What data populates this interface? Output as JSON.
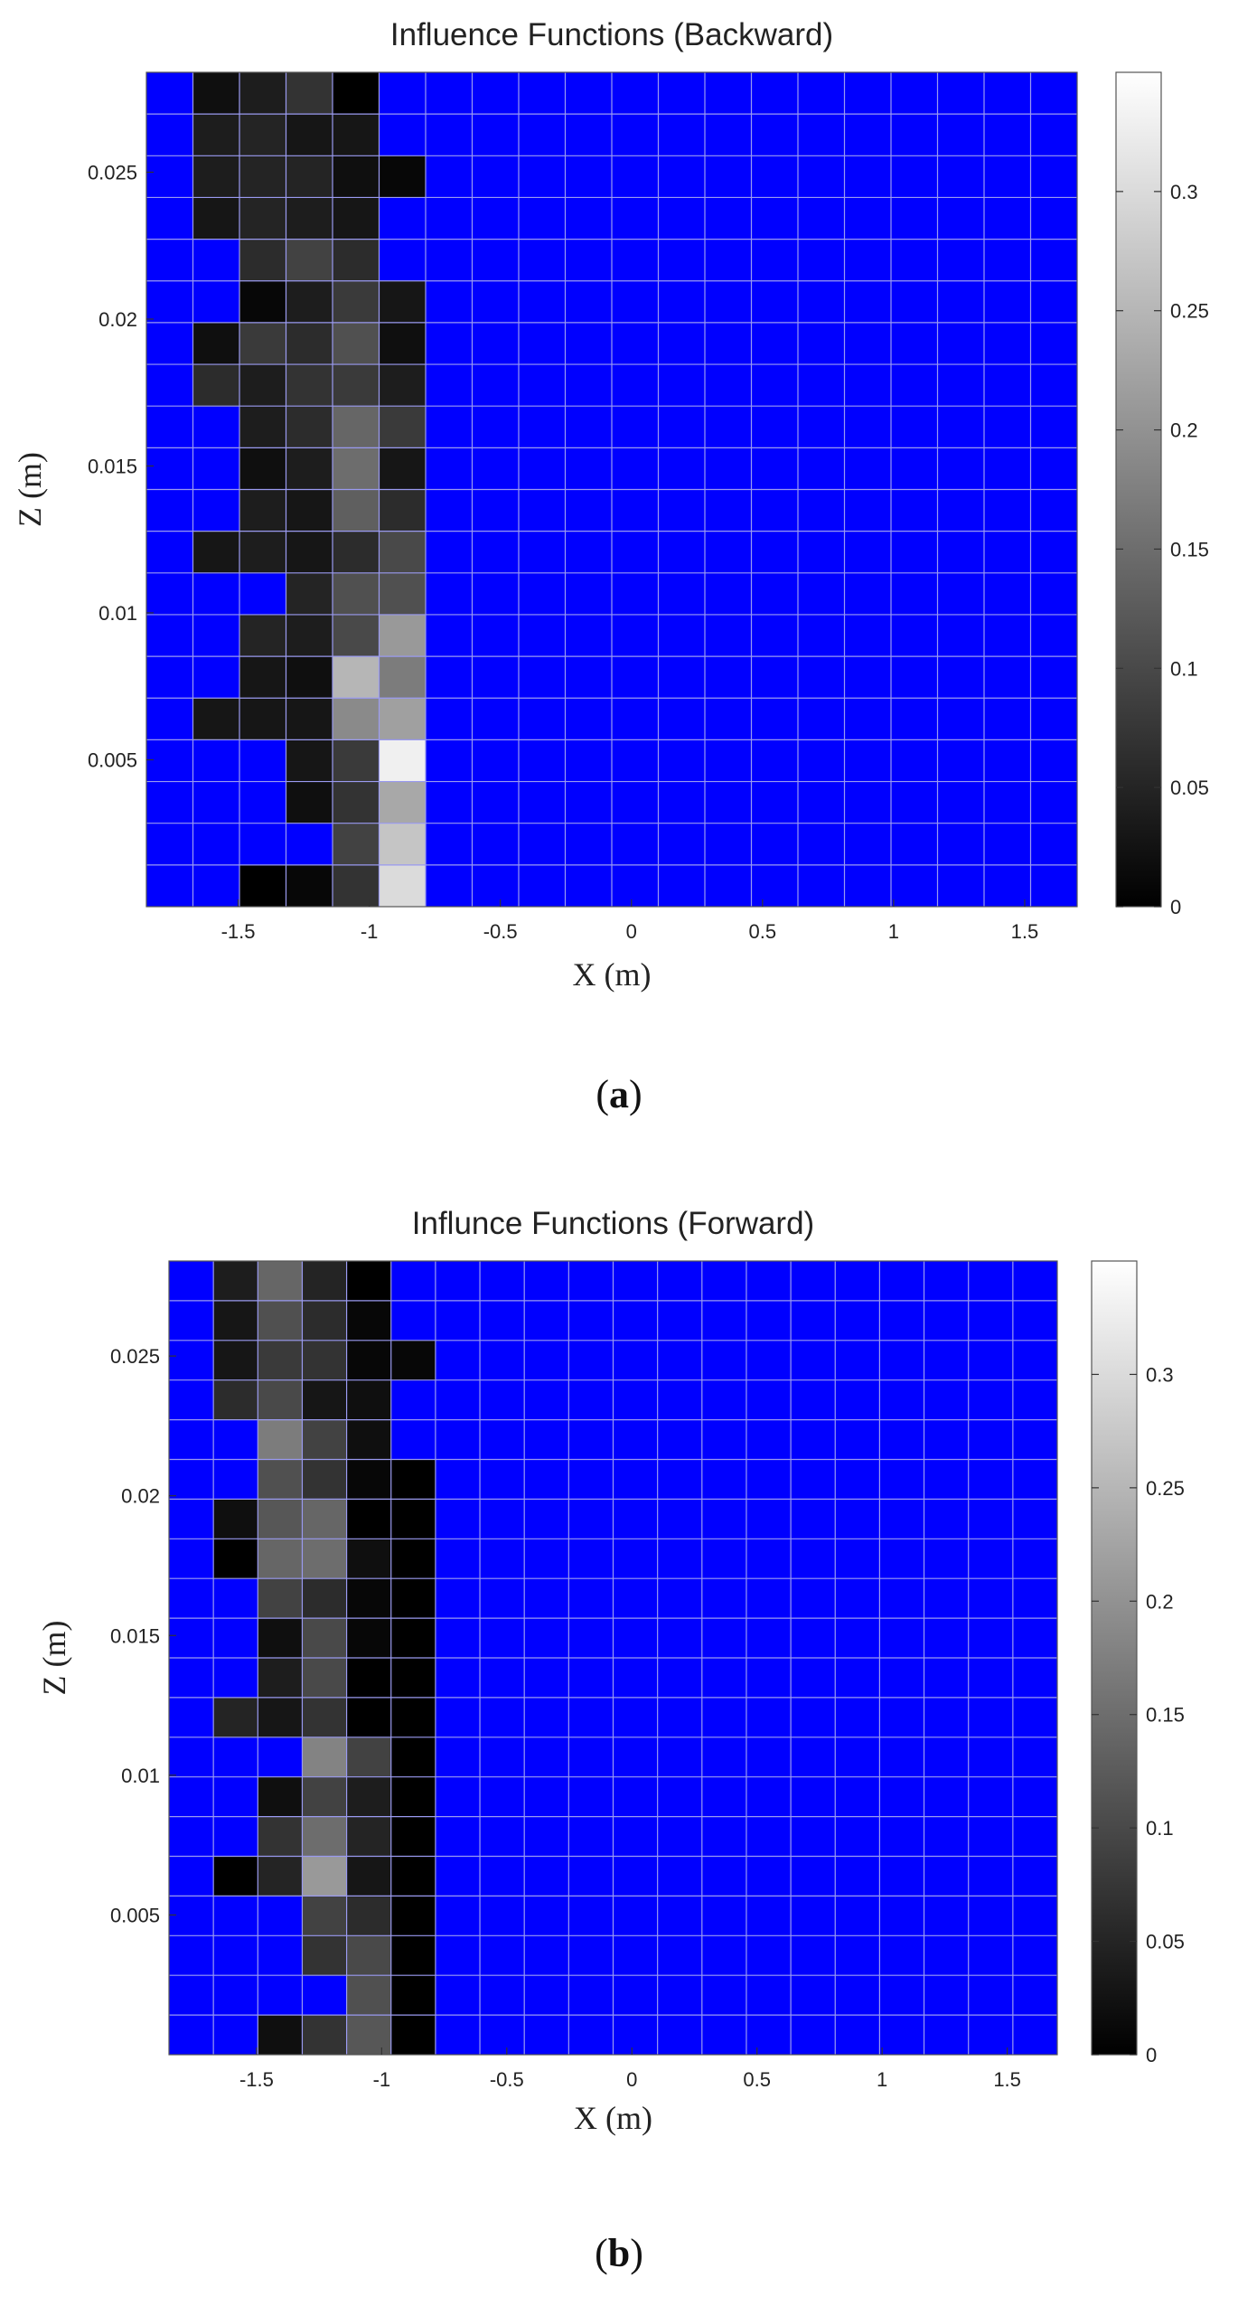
{
  "chart_data": [
    {
      "type": "heatmap",
      "title": "Influence Functions (Backward)",
      "xlabel": "X (m)",
      "ylabel": "Z (m)",
      "caption_letter": "a",
      "xlim": [
        -1.85,
        1.7
      ],
      "ylim": [
        0.0,
        0.0284
      ],
      "xticks": [
        -1.5,
        -1,
        -0.5,
        0,
        0.5,
        1,
        1.5
      ],
      "xtick_labels": [
        "-1.5",
        "-1",
        "-0.5",
        "0",
        "0.5",
        "1",
        "1.5"
      ],
      "yticks": [
        0.005,
        0.01,
        0.015,
        0.02,
        0.025
      ],
      "ytick_labels": [
        "0.005",
        "0.01",
        "0.015",
        "0.02",
        "0.025"
      ],
      "colorbar_ticks": [
        0,
        0.05,
        0.1,
        0.15,
        0.2,
        0.25,
        0.3
      ],
      "colorbar_tick_labels": [
        "0",
        "0.05",
        "0.1",
        "0.15",
        "0.2",
        "0.25",
        "0.3"
      ],
      "colorbar_range": [
        0,
        0.35
      ],
      "colormap": "gray",
      "empty_color": "#0000ff",
      "grid_color": "#9a9af0",
      "grid": true,
      "n_cols": 20,
      "n_rows": 20,
      "row_order": "top-to-bottom",
      "values": [
        [
          null,
          0.02,
          0.04,
          0.07,
          0.0,
          null,
          null,
          null,
          null,
          null,
          null,
          null,
          null,
          null,
          null,
          null,
          null,
          null,
          null,
          null
        ],
        [
          null,
          0.04,
          0.05,
          0.03,
          0.03,
          null,
          null,
          null,
          null,
          null,
          null,
          null,
          null,
          null,
          null,
          null,
          null,
          null,
          null,
          null
        ],
        [
          null,
          0.04,
          0.05,
          0.05,
          0.02,
          0.01,
          null,
          null,
          null,
          null,
          null,
          null,
          null,
          null,
          null,
          null,
          null,
          null,
          null,
          null
        ],
        [
          null,
          0.03,
          0.05,
          0.04,
          0.03,
          null,
          null,
          null,
          null,
          null,
          null,
          null,
          null,
          null,
          null,
          null,
          null,
          null,
          null,
          null
        ],
        [
          null,
          null,
          0.06,
          0.09,
          0.06,
          null,
          null,
          null,
          null,
          null,
          null,
          null,
          null,
          null,
          null,
          null,
          null,
          null,
          null,
          null
        ],
        [
          null,
          null,
          0.01,
          0.04,
          0.08,
          0.03,
          null,
          null,
          null,
          null,
          null,
          null,
          null,
          null,
          null,
          null,
          null,
          null,
          null,
          null
        ],
        [
          null,
          0.02,
          0.08,
          0.06,
          0.11,
          0.02,
          null,
          null,
          null,
          null,
          null,
          null,
          null,
          null,
          null,
          null,
          null,
          null,
          null,
          null
        ],
        [
          null,
          0.06,
          0.04,
          0.07,
          0.08,
          0.04,
          null,
          null,
          null,
          null,
          null,
          null,
          null,
          null,
          null,
          null,
          null,
          null,
          null,
          null
        ],
        [
          null,
          null,
          0.04,
          0.06,
          0.14,
          0.08,
          null,
          null,
          null,
          null,
          null,
          null,
          null,
          null,
          null,
          null,
          null,
          null,
          null,
          null
        ],
        [
          null,
          null,
          0.02,
          0.04,
          0.15,
          0.03,
          null,
          null,
          null,
          null,
          null,
          null,
          null,
          null,
          null,
          null,
          null,
          null,
          null,
          null
        ],
        [
          null,
          null,
          0.04,
          0.03,
          0.13,
          0.06,
          null,
          null,
          null,
          null,
          null,
          null,
          null,
          null,
          null,
          null,
          null,
          null,
          null,
          null
        ],
        [
          null,
          0.03,
          0.04,
          0.03,
          0.06,
          0.1,
          null,
          null,
          null,
          null,
          null,
          null,
          null,
          null,
          null,
          null,
          null,
          null,
          null,
          null
        ],
        [
          null,
          null,
          null,
          0.05,
          0.11,
          0.11,
          null,
          null,
          null,
          null,
          null,
          null,
          null,
          null,
          null,
          null,
          null,
          null,
          null,
          null
        ],
        [
          null,
          null,
          0.05,
          0.04,
          0.1,
          0.21,
          null,
          null,
          null,
          null,
          null,
          null,
          null,
          null,
          null,
          null,
          null,
          null,
          null,
          null
        ],
        [
          null,
          null,
          0.03,
          0.02,
          0.25,
          0.17,
          null,
          null,
          null,
          null,
          null,
          null,
          null,
          null,
          null,
          null,
          null,
          null,
          null,
          null
        ],
        [
          null,
          0.03,
          0.03,
          0.03,
          0.19,
          0.22,
          null,
          null,
          null,
          null,
          null,
          null,
          null,
          null,
          null,
          null,
          null,
          null,
          null,
          null
        ],
        [
          null,
          null,
          null,
          0.03,
          0.08,
          0.33,
          null,
          null,
          null,
          null,
          null,
          null,
          null,
          null,
          null,
          null,
          null,
          null,
          null,
          null
        ],
        [
          null,
          null,
          null,
          0.02,
          0.07,
          0.23,
          null,
          null,
          null,
          null,
          null,
          null,
          null,
          null,
          null,
          null,
          null,
          null,
          null,
          null
        ],
        [
          null,
          null,
          null,
          null,
          0.09,
          0.27,
          null,
          null,
          null,
          null,
          null,
          null,
          null,
          null,
          null,
          null,
          null,
          null,
          null,
          null
        ],
        [
          null,
          null,
          0.0,
          0.01,
          0.07,
          0.3,
          null,
          null,
          null,
          null,
          null,
          null,
          null,
          null,
          null,
          null,
          null,
          null,
          null,
          null
        ]
      ]
    },
    {
      "type": "heatmap",
      "title": "Influnce Functions (Forward)",
      "xlabel": "X (m)",
      "ylabel": "Z (m)",
      "caption_letter": "b",
      "xlim": [
        -1.85,
        1.7
      ],
      "ylim": [
        0.0,
        0.0284
      ],
      "xticks": [
        -1.5,
        -1,
        -0.5,
        0,
        0.5,
        1,
        1.5
      ],
      "xtick_labels": [
        "-1.5",
        "-1",
        "-0.5",
        "0",
        "0.5",
        "1",
        "1.5"
      ],
      "yticks": [
        0.005,
        0.01,
        0.015,
        0.02,
        0.025
      ],
      "ytick_labels": [
        "0.005",
        "0.01",
        "0.015",
        "0.02",
        "0.025"
      ],
      "colorbar_ticks": [
        0,
        0.05,
        0.1,
        0.15,
        0.2,
        0.25,
        0.3
      ],
      "colorbar_tick_labels": [
        "0",
        "0.05",
        "0.1",
        "0.15",
        "0.2",
        "0.25",
        "0.3"
      ],
      "colorbar_range": [
        0,
        0.35
      ],
      "colormap": "gray",
      "empty_color": "#0000ff",
      "grid_color": "#9a9af0",
      "grid": true,
      "n_cols": 20,
      "n_rows": 20,
      "row_order": "top-to-bottom",
      "values": [
        [
          null,
          0.04,
          0.14,
          0.05,
          0.0,
          null,
          null,
          null,
          null,
          null,
          null,
          null,
          null,
          null,
          null,
          null,
          null,
          null,
          null,
          null
        ],
        [
          null,
          0.03,
          0.11,
          0.06,
          0.01,
          null,
          null,
          null,
          null,
          null,
          null,
          null,
          null,
          null,
          null,
          null,
          null,
          null,
          null,
          null
        ],
        [
          null,
          0.03,
          0.08,
          0.07,
          0.01,
          0.01,
          null,
          null,
          null,
          null,
          null,
          null,
          null,
          null,
          null,
          null,
          null,
          null,
          null,
          null
        ],
        [
          null,
          0.06,
          0.1,
          0.03,
          0.02,
          null,
          null,
          null,
          null,
          null,
          null,
          null,
          null,
          null,
          null,
          null,
          null,
          null,
          null,
          null
        ],
        [
          null,
          null,
          0.17,
          0.09,
          0.02,
          null,
          null,
          null,
          null,
          null,
          null,
          null,
          null,
          null,
          null,
          null,
          null,
          null,
          null,
          null
        ],
        [
          null,
          null,
          0.11,
          0.07,
          0.01,
          0.0,
          null,
          null,
          null,
          null,
          null,
          null,
          null,
          null,
          null,
          null,
          null,
          null,
          null,
          null
        ],
        [
          null,
          0.02,
          0.12,
          0.14,
          0.0,
          0.0,
          null,
          null,
          null,
          null,
          null,
          null,
          null,
          null,
          null,
          null,
          null,
          null,
          null,
          null
        ],
        [
          null,
          0.0,
          0.14,
          0.15,
          0.02,
          0.0,
          null,
          null,
          null,
          null,
          null,
          null,
          null,
          null,
          null,
          null,
          null,
          null,
          null,
          null
        ],
        [
          null,
          null,
          0.09,
          0.06,
          0.01,
          0.0,
          null,
          null,
          null,
          null,
          null,
          null,
          null,
          null,
          null,
          null,
          null,
          null,
          null,
          null
        ],
        [
          null,
          null,
          0.02,
          0.1,
          0.01,
          0.0,
          null,
          null,
          null,
          null,
          null,
          null,
          null,
          null,
          null,
          null,
          null,
          null,
          null,
          null
        ],
        [
          null,
          null,
          0.04,
          0.1,
          0.0,
          0.0,
          null,
          null,
          null,
          null,
          null,
          null,
          null,
          null,
          null,
          null,
          null,
          null,
          null,
          null
        ],
        [
          null,
          0.05,
          0.03,
          0.07,
          0.0,
          0.0,
          null,
          null,
          null,
          null,
          null,
          null,
          null,
          null,
          null,
          null,
          null,
          null,
          null,
          null
        ],
        [
          null,
          null,
          null,
          0.18,
          0.09,
          0.0,
          null,
          null,
          null,
          null,
          null,
          null,
          null,
          null,
          null,
          null,
          null,
          null,
          null,
          null
        ],
        [
          null,
          null,
          0.02,
          0.09,
          0.04,
          0.0,
          null,
          null,
          null,
          null,
          null,
          null,
          null,
          null,
          null,
          null,
          null,
          null,
          null,
          null
        ],
        [
          null,
          null,
          0.07,
          0.15,
          0.05,
          0.0,
          null,
          null,
          null,
          null,
          null,
          null,
          null,
          null,
          null,
          null,
          null,
          null,
          null,
          null
        ],
        [
          null,
          0.0,
          0.05,
          0.21,
          0.03,
          0.0,
          null,
          null,
          null,
          null,
          null,
          null,
          null,
          null,
          null,
          null,
          null,
          null,
          null,
          null
        ],
        [
          null,
          null,
          null,
          0.09,
          0.06,
          0.0,
          null,
          null,
          null,
          null,
          null,
          null,
          null,
          null,
          null,
          null,
          null,
          null,
          null,
          null
        ],
        [
          null,
          null,
          null,
          0.07,
          0.1,
          0.0,
          null,
          null,
          null,
          null,
          null,
          null,
          null,
          null,
          null,
          null,
          null,
          null,
          null,
          null
        ],
        [
          null,
          null,
          null,
          null,
          0.11,
          0.0,
          null,
          null,
          null,
          null,
          null,
          null,
          null,
          null,
          null,
          null,
          null,
          null,
          null,
          null
        ],
        [
          null,
          null,
          0.02,
          0.07,
          0.12,
          0.0,
          null,
          null,
          null,
          null,
          null,
          null,
          null,
          null,
          null,
          null,
          null,
          null,
          null,
          null
        ]
      ]
    }
  ]
}
